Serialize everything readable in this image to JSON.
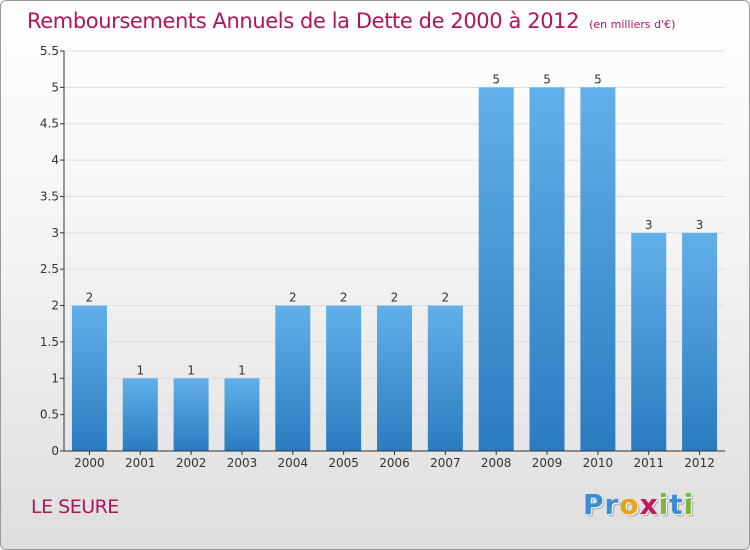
{
  "header": {
    "title": "Remboursements Annuels de la Dette de 2000 à 2012",
    "unit": "(en milliers d'€)"
  },
  "footer": {
    "commune": "LE SEURE",
    "brand": "Proxiti",
    "brand_letters": [
      {
        "ch": "P",
        "color": "#3a8fd4"
      },
      {
        "ch": "r",
        "color": "#3a8fd4"
      },
      {
        "ch": "o",
        "color": "#e8a21a"
      },
      {
        "ch": "x",
        "color": "#c0185e"
      },
      {
        "ch": "i",
        "color": "#7ab833"
      },
      {
        "ch": "t",
        "color": "#3a8fd4"
      },
      {
        "ch": "i",
        "color": "#7ab833"
      }
    ]
  },
  "colors": {
    "title": "#b0145a",
    "bar_light": "#62b0ea",
    "bar_dark": "#2a7cc0",
    "axis": "#333333",
    "grid": "#dddddd"
  },
  "chart_data": {
    "type": "bar",
    "title": "Remboursements Annuels de la Dette de 2000 à 2012",
    "ylabel": "",
    "xlabel": "",
    "categories": [
      "2000",
      "2001",
      "2002",
      "2003",
      "2004",
      "2005",
      "2006",
      "2007",
      "2008",
      "2009",
      "2010",
      "2011",
      "2012"
    ],
    "values": [
      2,
      1,
      1,
      1,
      2,
      2,
      2,
      2,
      5,
      5,
      5,
      3,
      3
    ],
    "ylim": [
      0,
      5.5
    ],
    "yticks": [
      "0",
      "0.5",
      "1",
      "1.5",
      "2",
      "2.5",
      "3",
      "3.5",
      "4",
      "4.5",
      "5",
      "5.5"
    ],
    "grid": true,
    "data_labels": true
  }
}
